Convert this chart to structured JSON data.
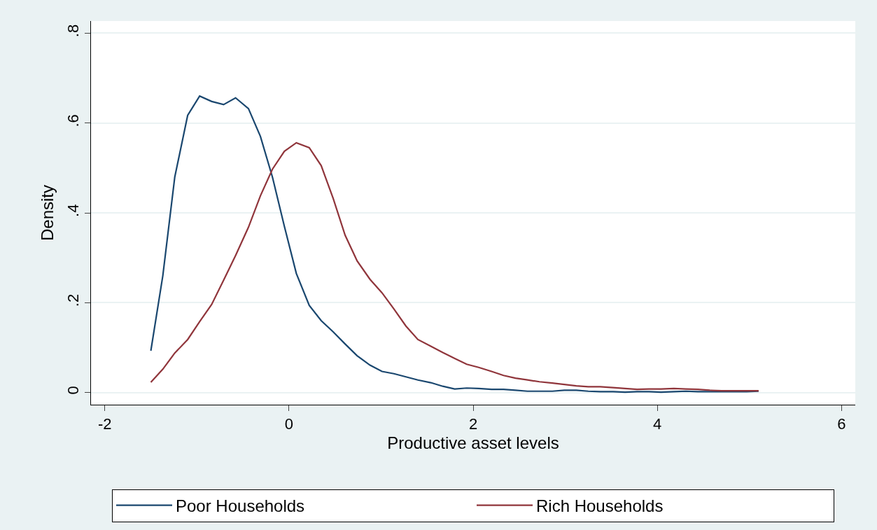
{
  "chart_data": {
    "type": "line",
    "xlabel": "Productive asset levels",
    "ylabel": "Density",
    "x": [
      -1.5,
      -1.37,
      -1.24,
      -1.1,
      -0.97,
      -0.84,
      -0.71,
      -0.58,
      -0.44,
      -0.31,
      -0.18,
      -0.05,
      0.08,
      0.22,
      0.35,
      0.48,
      0.61,
      0.74,
      0.88,
      1.01,
      1.14,
      1.27,
      1.4,
      1.54,
      1.67,
      1.8,
      1.93,
      2.06,
      2.2,
      2.33,
      2.46,
      2.59,
      2.72,
      2.86,
      2.99,
      3.12,
      3.25,
      3.38,
      3.52,
      3.65,
      3.78,
      3.91,
      4.04,
      4.18,
      4.31,
      4.44,
      4.57,
      4.7,
      4.84,
      4.97,
      5.1
    ],
    "series": [
      {
        "name": "Poor Households",
        "color": "#1a476f",
        "values": [
          0.093,
          0.26,
          0.48,
          0.617,
          0.66,
          0.648,
          0.641,
          0.656,
          0.632,
          0.57,
          0.48,
          0.37,
          0.265,
          0.194,
          0.16,
          0.135,
          0.108,
          0.082,
          0.061,
          0.047,
          0.042,
          0.035,
          0.028,
          0.022,
          0.014,
          0.008,
          0.01,
          0.009,
          0.007,
          0.007,
          0.005,
          0.003,
          0.003,
          0.003,
          0.005,
          0.005,
          0.003,
          0.002,
          0.002,
          0.001,
          0.002,
          0.002,
          0.001,
          0.002,
          0.003,
          0.002,
          0.002,
          0.002,
          0.002,
          0.002,
          0.003
        ]
      },
      {
        "name": "Rich Households",
        "color": "#90353b",
        "values": [
          0.023,
          0.052,
          0.088,
          0.118,
          0.158,
          0.196,
          0.25,
          0.305,
          0.368,
          0.438,
          0.497,
          0.537,
          0.556,
          0.545,
          0.505,
          0.432,
          0.35,
          0.293,
          0.252,
          0.222,
          0.186,
          0.148,
          0.118,
          0.103,
          0.089,
          0.076,
          0.063,
          0.056,
          0.047,
          0.038,
          0.032,
          0.028,
          0.024,
          0.021,
          0.018,
          0.015,
          0.013,
          0.013,
          0.011,
          0.009,
          0.007,
          0.008,
          0.008,
          0.009,
          0.008,
          0.007,
          0.005,
          0.004,
          0.004,
          0.004,
          0.004
        ]
      }
    ],
    "xlim": [
      -2.15,
      6.15
    ],
    "xticks": [
      -2,
      0,
      2,
      4,
      6
    ],
    "ylim": [
      -0.027,
      0.827
    ],
    "yticks": [
      {
        "value": 0,
        "label": "0"
      },
      {
        "value": 0.2,
        "label": ".2"
      },
      {
        "value": 0.4,
        "label": ".4"
      },
      {
        "value": 0.6,
        "label": ".6"
      },
      {
        "value": 0.8,
        "label": ".8"
      }
    ],
    "grid": "y",
    "legend": "bottom",
    "marker": "none",
    "line_style": "solid"
  }
}
